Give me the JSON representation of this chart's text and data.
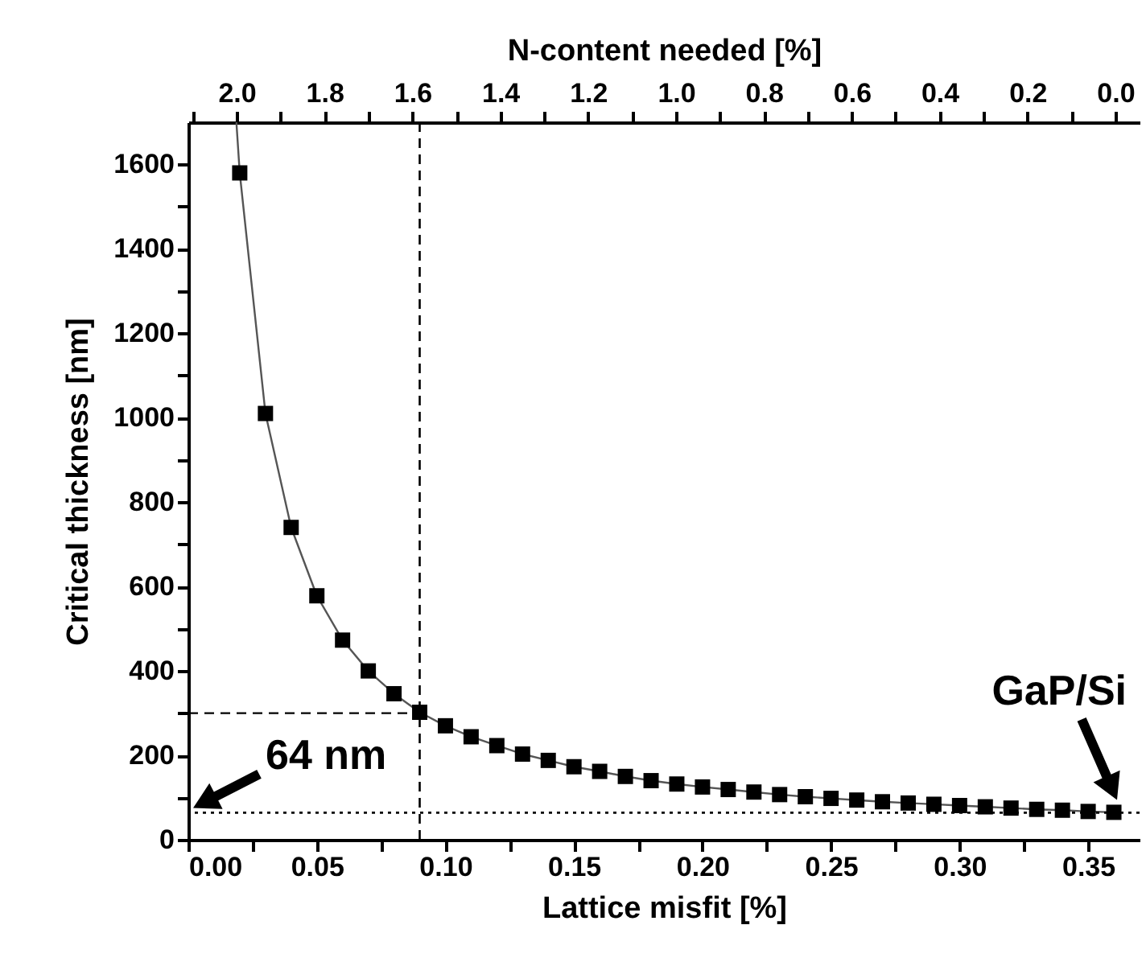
{
  "chart_data": {
    "type": "scatter",
    "xlabel": "Lattice misfit [%]",
    "ylabel": "Critical thickness [nm]",
    "x2label": "N-content needed [%]",
    "xlim": [
      0,
      0.37
    ],
    "ylim": [
      0,
      1700
    ],
    "x2lim": [
      2.11,
      -0.055
    ],
    "xticks": [
      {
        "value": 0,
        "label": "0.00"
      },
      {
        "value": 0.025,
        "label": null
      },
      {
        "value": 0.05,
        "label": "0.05"
      },
      {
        "value": 0.075,
        "label": null
      },
      {
        "value": 0.1,
        "label": "0.10"
      },
      {
        "value": 0.125,
        "label": null
      },
      {
        "value": 0.15,
        "label": "0.15"
      },
      {
        "value": 0.175,
        "label": null
      },
      {
        "value": 0.2,
        "label": "0.20"
      },
      {
        "value": 0.225,
        "label": null
      },
      {
        "value": 0.25,
        "label": "0.25"
      },
      {
        "value": 0.275,
        "label": null
      },
      {
        "value": 0.3,
        "label": "0.30"
      },
      {
        "value": 0.325,
        "label": null
      },
      {
        "value": 0.35,
        "label": "0.35"
      }
    ],
    "yticks": [
      0,
      {
        "value": 100,
        "label": null
      },
      200,
      {
        "value": 300,
        "label": null
      },
      400,
      {
        "value": 500,
        "label": null
      },
      600,
      {
        "value": 700,
        "label": null
      },
      800,
      {
        "value": 900,
        "label": null
      },
      1000,
      {
        "value": 1100,
        "label": null
      },
      1200,
      {
        "value": 1300,
        "label": null
      },
      1400,
      {
        "value": 1500,
        "label": null
      },
      1600
    ],
    "x2ticks": [
      {
        "value": 2.1,
        "label": null
      },
      {
        "value": 2,
        "label": "2.0"
      },
      {
        "value": 1.9,
        "label": null
      },
      {
        "value": 1.8,
        "label": "1.8"
      },
      {
        "value": 1.7,
        "label": null
      },
      {
        "value": 1.6,
        "label": "1.6"
      },
      {
        "value": 1.5,
        "label": null
      },
      {
        "value": 1.4,
        "label": "1.4"
      },
      {
        "value": 1.3,
        "label": null
      },
      {
        "value": 1.2,
        "label": "1.2"
      },
      {
        "value": 1.1,
        "label": null
      },
      {
        "value": 1,
        "label": "1.0"
      },
      {
        "value": 0.9,
        "label": null
      },
      {
        "value": 0.8,
        "label": "0.8"
      },
      {
        "value": 0.7,
        "label": null
      },
      {
        "value": 0.6,
        "label": "0.6"
      },
      {
        "value": 0.5,
        "label": null
      },
      {
        "value": 0.4,
        "label": "0.4"
      },
      {
        "value": 0.3,
        "label": null
      },
      {
        "value": 0.2,
        "label": "0.2"
      },
      {
        "value": 0.1,
        "label": null
      },
      {
        "value": 0,
        "label": "0.0"
      }
    ],
    "marker": "square",
    "line_style": "solid",
    "series": [
      {
        "type": "line",
        "marker": "none",
        "color": "#555555",
        "x": [
          0.0187,
          0.02,
          0.03,
          0.04,
          0.05,
          0.06,
          0.07,
          0.08,
          0.09,
          0.1,
          0.11,
          0.12,
          0.13,
          0.14,
          0.15,
          0.16,
          0.17,
          0.18,
          0.19,
          0.2,
          0.21,
          0.22,
          0.23,
          0.24,
          0.25,
          0.26,
          0.27,
          0.28,
          0.29,
          0.3,
          0.31,
          0.32,
          0.33,
          0.34,
          0.35,
          0.36
        ],
        "values": [
          1700,
          1580,
          1010,
          740,
          578,
          473,
          400,
          346,
          302,
          270,
          244,
          223,
          203,
          188,
          173,
          162,
          150,
          140,
          132,
          125,
          119,
          113,
          107,
          102,
          98,
          94,
          90,
          87,
          84,
          81,
          78,
          75,
          72,
          70,
          67,
          65
        ]
      },
      {
        "color": "#000000",
        "x": [
          0.02,
          0.03,
          0.04,
          0.05,
          0.06,
          0.07,
          0.08,
          0.09,
          0.1,
          0.11,
          0.12,
          0.13,
          0.14,
          0.15,
          0.16,
          0.17,
          0.18,
          0.19,
          0.2,
          0.21,
          0.22,
          0.23,
          0.24,
          0.25,
          0.26,
          0.27,
          0.28,
          0.29,
          0.3,
          0.31,
          0.32,
          0.33,
          0.34,
          0.35,
          0.36
        ],
        "values": [
          1580,
          1010,
          740,
          578,
          473,
          400,
          346,
          302,
          270,
          244,
          223,
          203,
          188,
          173,
          162,
          150,
          140,
          132,
          125,
          119,
          113,
          107,
          102,
          98,
          94,
          90,
          87,
          84,
          81,
          78,
          75,
          72,
          70,
          67,
          65
        ]
      },
      {
        "type": "line",
        "marker": "none",
        "color": "#000000",
        "line_style": "dashed",
        "x": [
          0,
          0.09
        ],
        "values": [
          300,
          300
        ]
      }
    ],
    "ref_lines": [
      {
        "axis": "x",
        "value": 0.09,
        "line_style": "dashed",
        "color": "#000000"
      },
      {
        "axis": "y",
        "value": 64,
        "line_style": "dotted",
        "color": "#000000"
      }
    ],
    "annotations": [
      {
        "text": "64 nm",
        "x": 0,
        "y": 64
      },
      {
        "text": "GaP/Si",
        "x": 0.36,
        "y": 64
      }
    ]
  }
}
